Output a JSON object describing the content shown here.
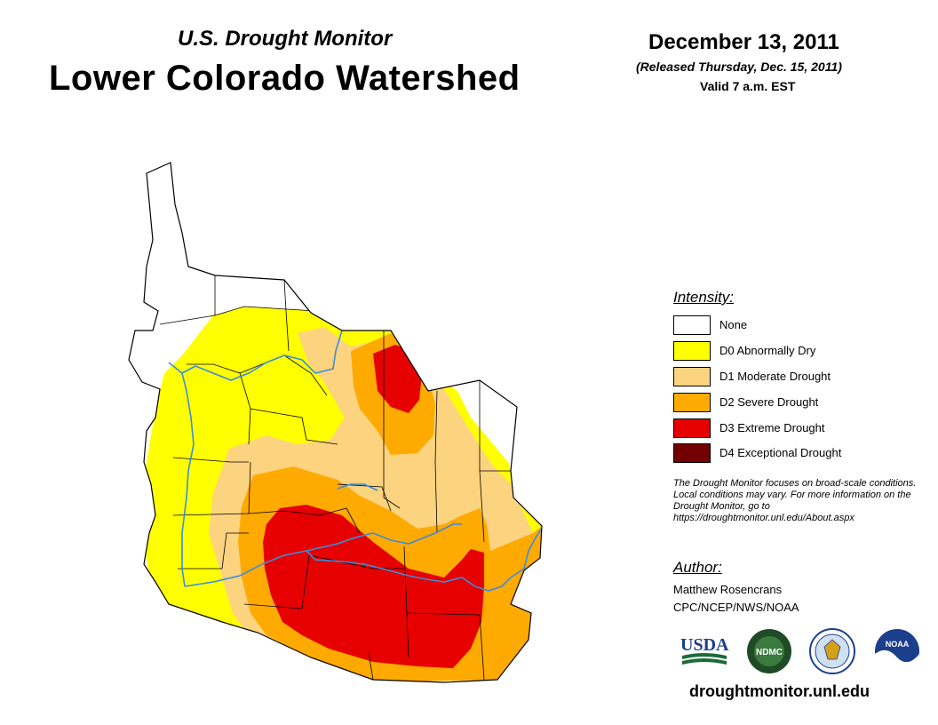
{
  "header": {
    "subtitle": "U.S. Drought Monitor",
    "title": "Lower Colorado Watershed",
    "date": "December 13, 2011",
    "released": "(Released Thursday, Dec. 15, 2011)",
    "valid": "Valid 7 a.m. EST"
  },
  "legend": {
    "title": "Intensity:",
    "items": [
      {
        "label": "None",
        "color": "#ffffff"
      },
      {
        "label": "D0 Abnormally Dry",
        "color": "#ffff00"
      },
      {
        "label": "D1 Moderate Drought",
        "color": "#fcd37f"
      },
      {
        "label": "D2 Severe Drought",
        "color": "#ffaa00"
      },
      {
        "label": "D3 Extreme Drought",
        "color": "#e60000"
      },
      {
        "label": "D4 Exceptional Drought",
        "color": "#730000"
      }
    ]
  },
  "note": "The Drought Monitor focuses on broad-scale conditions. Local conditions may vary. For more information on the Drought Monitor, go to https://droughtmonitor.unl.edu/About.aspx",
  "author": {
    "title": "Author:",
    "name": "Matthew Rosencrans",
    "org": "CPC/NCEP/NWS/NOAA"
  },
  "logos": {
    "usda": "USDA",
    "ndmc": "NDMC",
    "noaa": "NOAA"
  },
  "footer": {
    "url": "droughtmonitor.unl.edu"
  },
  "map": {
    "river_color": "#3a8dde"
  }
}
